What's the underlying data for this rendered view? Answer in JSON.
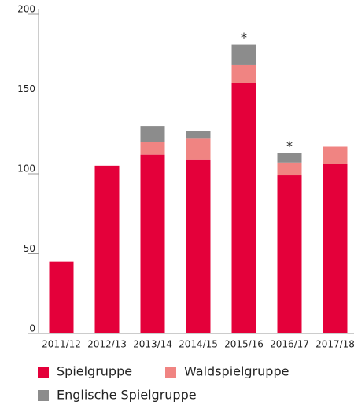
{
  "chart_data": {
    "type": "stacked_bar",
    "categories": [
      "2011/12",
      "2012/13",
      "2013/14",
      "2014/15",
      "2015/16",
      "2016/17",
      "2017/18"
    ],
    "series": [
      {
        "name": "Spielgruppe",
        "color": "#e4003a",
        "values": [
          45,
          105,
          112,
          109,
          157,
          99,
          106
        ]
      },
      {
        "name": "Waldspielgruppe",
        "color": "#f08482",
        "values": [
          0,
          0,
          8,
          13,
          11,
          8,
          11
        ]
      },
      {
        "name": "Englische Spielgruppe",
        "color": "#8c8c8c",
        "values": [
          0,
          0,
          10,
          5,
          13,
          6,
          0
        ]
      }
    ],
    "annotations": [
      {
        "category": 4,
        "text": "*"
      },
      {
        "category": 5,
        "text": "*"
      }
    ],
    "ylim": [
      0,
      200
    ],
    "yticks": [
      0,
      50,
      100,
      150,
      200
    ]
  }
}
